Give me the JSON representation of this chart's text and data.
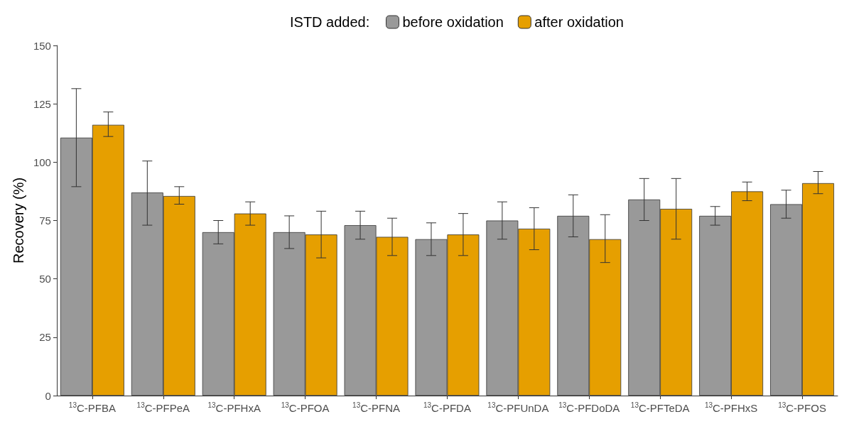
{
  "chart_data": {
    "type": "bar",
    "ylabel": "Recovery (%)",
    "legend_title": "ISTD added:",
    "categories": [
      "$^{13}$C-PFBA",
      "$^{13}$C-PFPeA",
      "$^{13}$C-PFHxA",
      "$^{13}$C-PFOA",
      "$^{13}$C-PFNA",
      "$^{13}$C-PFDA",
      "$^{13}$C-PFUnDA",
      "$^{13}$C-PFDoDA",
      "$^{13}$C-PFTeDA",
      "$^{13}$C-PFHxS",
      "$^{13}$C-PFOS"
    ],
    "series": [
      {
        "name": "before oxidation",
        "color": "#999999",
        "values": [
          110.5,
          87,
          70,
          70,
          73,
          67,
          75,
          77,
          84,
          77,
          82
        ],
        "errors": [
          [
            89.5,
            131.5
          ],
          [
            73,
            100.5
          ],
          [
            65,
            75
          ],
          [
            63,
            77
          ],
          [
            67,
            79
          ],
          [
            60,
            74
          ],
          [
            67,
            83
          ],
          [
            68,
            86
          ],
          [
            75,
            93
          ],
          [
            73,
            81
          ],
          [
            76,
            88
          ]
        ]
      },
      {
        "name": "after oxidation",
        "color": "#e69f00",
        "values": [
          116,
          85.5,
          78,
          69,
          68,
          69,
          71.5,
          67,
          80,
          87.5,
          91
        ],
        "errors": [
          [
            111,
            121.5
          ],
          [
            82,
            89.5
          ],
          [
            73,
            83
          ],
          [
            59,
            79
          ],
          [
            60,
            76
          ],
          [
            60,
            78
          ],
          [
            62.5,
            80.5
          ],
          [
            57,
            77.5
          ],
          [
            67,
            93
          ],
          [
            83.5,
            91.5
          ],
          [
            86.5,
            96
          ]
        ]
      }
    ],
    "ylim": [
      0,
      150
    ],
    "yticks": [
      0,
      25,
      50,
      75,
      100,
      125,
      150
    ],
    "grid": false,
    "legend": "top"
  }
}
